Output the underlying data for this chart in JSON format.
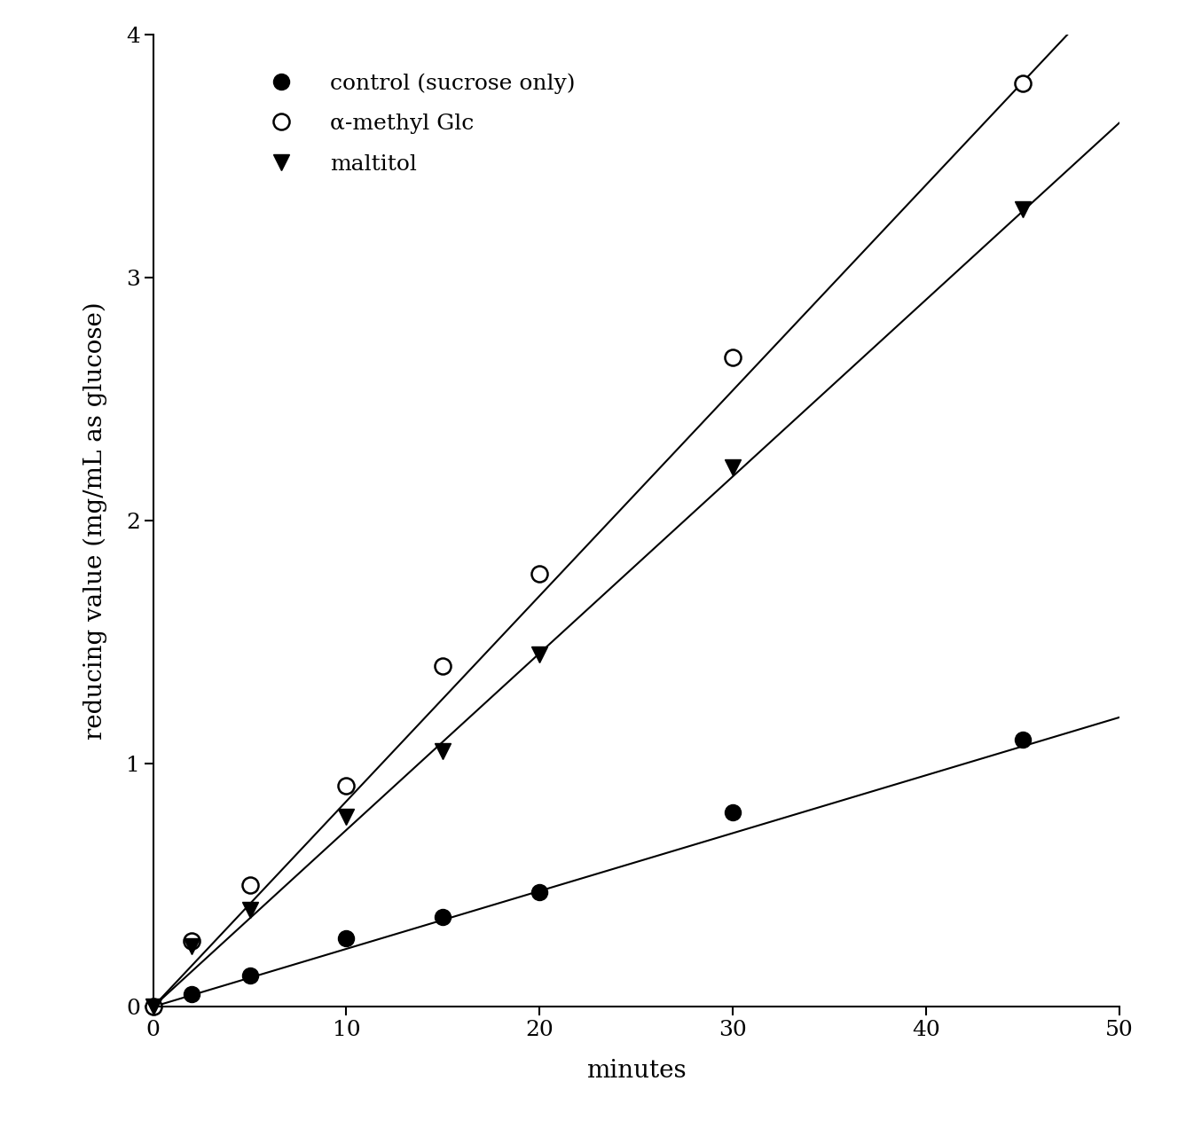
{
  "title": "",
  "xlabel": "minutes",
  "ylabel": "reducing value (mg/mL as glucose)",
  "xlim": [
    0,
    50
  ],
  "ylim": [
    0,
    4
  ],
  "xticks": [
    0,
    10,
    20,
    30,
    40,
    50
  ],
  "yticks": [
    0,
    1,
    2,
    3,
    4
  ],
  "control": {
    "x": [
      0,
      2,
      5,
      10,
      15,
      20,
      30,
      45
    ],
    "y": [
      0,
      0.05,
      0.13,
      0.28,
      0.37,
      0.47,
      0.8,
      1.1
    ],
    "label": "control (sucrose only)",
    "marker": "o",
    "filled": true,
    "color": "black",
    "slope": 0.0238
  },
  "alpha_methyl": {
    "x": [
      0,
      2,
      5,
      10,
      15,
      20,
      30,
      45
    ],
    "y": [
      0,
      0.27,
      0.5,
      0.91,
      1.4,
      1.78,
      2.67,
      3.8
    ],
    "label": "α-methyl Glc",
    "marker": "o",
    "filled": false,
    "color": "black",
    "slope": 0.0845
  },
  "maltitol": {
    "x": [
      0,
      2,
      5,
      10,
      15,
      20,
      30,
      45
    ],
    "y": [
      0,
      0.25,
      0.4,
      0.78,
      1.05,
      1.45,
      2.22,
      3.28
    ],
    "label": "maltitol",
    "marker": "v",
    "filled": true,
    "color": "black",
    "slope": 0.0727
  },
  "background_color": "white",
  "font_size_labels": 20,
  "font_size_ticks": 18,
  "font_size_legend": 18,
  "line_width": 1.5,
  "marker_size": 13
}
